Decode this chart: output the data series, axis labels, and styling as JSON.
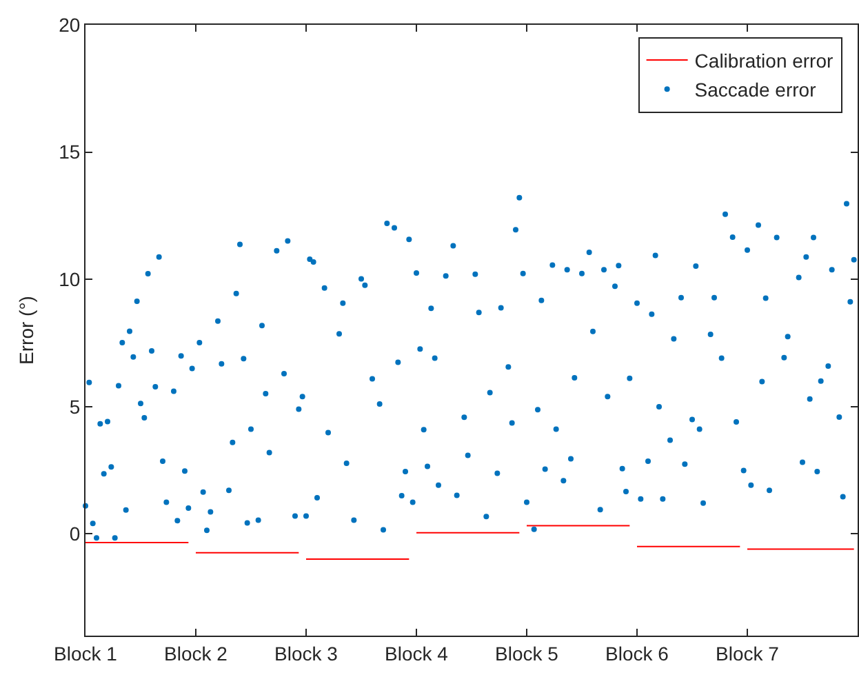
{
  "chart_data": {
    "type": "scatter",
    "ylabel": "Error (°)",
    "ylim": [
      -4,
      20
    ],
    "yticks": [
      0,
      5,
      10,
      15,
      20
    ],
    "grid": false,
    "legend": "top right",
    "categories": [
      "Block 1",
      null,
      null,
      null,
      null,
      null,
      null,
      null,
      null,
      null,
      null,
      null,
      null,
      null,
      null,
      null,
      null,
      null,
      null,
      null,
      null,
      null,
      null,
      null,
      null,
      null,
      null,
      null,
      null,
      null,
      "Block 2",
      null,
      null,
      null,
      null,
      null,
      null,
      null,
      null,
      null,
      null,
      null,
      null,
      null,
      null,
      null,
      null,
      null,
      null,
      null,
      null,
      null,
      null,
      null,
      null,
      null,
      null,
      null,
      null,
      null,
      "Block 3",
      null,
      null,
      null,
      null,
      null,
      null,
      null,
      null,
      null,
      null,
      null,
      null,
      null,
      null,
      null,
      null,
      null,
      null,
      null,
      null,
      null,
      null,
      null,
      null,
      null,
      null,
      null,
      null,
      null,
      "Block 4",
      null,
      null,
      null,
      null,
      null,
      null,
      null,
      null,
      null,
      null,
      null,
      null,
      null,
      null,
      null,
      null,
      null,
      null,
      null,
      null,
      null,
      null,
      null,
      null,
      null,
      null,
      null,
      null,
      null,
      "Block 5",
      null,
      null,
      null,
      null,
      null,
      null,
      null,
      null,
      null,
      null,
      null,
      null,
      null,
      null,
      null,
      null,
      null,
      null,
      null,
      null,
      null,
      null,
      null,
      null,
      null,
      null,
      null,
      null,
      null,
      "Block 6",
      null,
      null,
      null,
      null,
      null,
      null,
      null,
      null,
      null,
      null,
      null,
      null,
      null,
      null,
      null,
      null,
      null,
      null,
      null,
      null,
      null,
      null,
      null,
      null,
      null,
      null,
      null,
      null,
      null,
      "Block 7",
      null,
      null,
      null,
      null,
      null,
      null,
      null,
      null,
      null,
      null,
      null,
      null,
      null,
      null,
      null,
      null,
      null,
      null,
      null,
      null,
      null,
      null,
      null,
      null,
      null,
      null,
      null,
      null,
      null
    ],
    "series": [
      {
        "name": "Calibration error",
        "type": "line",
        "color": "#ff0000",
        "line_style": "solid",
        "marker": "none",
        "values": [
          -0.34,
          -0.34,
          -0.34,
          -0.34,
          -0.34,
          -0.34,
          -0.34,
          -0.34,
          -0.34,
          -0.34,
          -0.34,
          -0.34,
          -0.34,
          -0.34,
          -0.34,
          -0.34,
          -0.34,
          -0.34,
          -0.34,
          -0.34,
          -0.34,
          -0.34,
          -0.34,
          -0.34,
          -0.34,
          -0.34,
          -0.34,
          -0.34,
          -0.34,
          null,
          -0.74,
          -0.74,
          -0.74,
          -0.74,
          -0.74,
          -0.74,
          -0.74,
          -0.74,
          -0.74,
          -0.74,
          -0.74,
          -0.74,
          -0.74,
          -0.74,
          -0.74,
          -0.74,
          -0.74,
          -0.74,
          -0.74,
          -0.74,
          -0.74,
          -0.74,
          -0.74,
          -0.74,
          -0.74,
          -0.74,
          -0.74,
          -0.74,
          -0.74,
          null,
          -0.99,
          -0.99,
          -0.99,
          -0.99,
          -0.99,
          -0.99,
          -0.99,
          -0.99,
          -0.99,
          -0.99,
          -0.99,
          -0.99,
          -0.99,
          -0.99,
          -0.99,
          -0.99,
          -0.99,
          -0.99,
          -0.99,
          -0.99,
          -0.99,
          -0.99,
          -0.99,
          -0.99,
          -0.99,
          -0.99,
          -0.99,
          -0.99,
          -0.99,
          null,
          0.04,
          0.04,
          0.04,
          0.04,
          0.04,
          0.04,
          0.04,
          0.04,
          0.04,
          0.04,
          0.04,
          0.04,
          0.04,
          0.04,
          0.04,
          0.04,
          0.04,
          0.04,
          0.04,
          0.04,
          0.04,
          0.04,
          0.04,
          0.04,
          0.04,
          0.04,
          0.04,
          0.04,
          0.04,
          null,
          0.32,
          0.32,
          0.32,
          0.32,
          0.32,
          0.32,
          0.32,
          0.32,
          0.32,
          0.32,
          0.32,
          0.32,
          0.32,
          0.32,
          0.32,
          0.32,
          0.32,
          0.32,
          0.32,
          0.32,
          0.32,
          0.32,
          0.32,
          0.32,
          0.32,
          0.32,
          0.32,
          0.32,
          0.32,
          null,
          -0.5,
          -0.5,
          -0.5,
          -0.5,
          -0.5,
          -0.5,
          -0.5,
          -0.5,
          -0.5,
          -0.5,
          -0.5,
          -0.5,
          -0.5,
          -0.5,
          -0.5,
          -0.5,
          -0.5,
          -0.5,
          -0.5,
          -0.5,
          -0.5,
          -0.5,
          -0.5,
          -0.5,
          -0.5,
          -0.5,
          -0.5,
          -0.5,
          -0.5,
          null,
          -0.6,
          -0.6,
          -0.6,
          -0.6,
          -0.6,
          -0.6,
          -0.6,
          -0.6,
          -0.6,
          -0.6,
          -0.6,
          -0.6,
          -0.6,
          -0.6,
          -0.6,
          -0.6,
          -0.6,
          -0.6,
          -0.6,
          -0.6,
          -0.6,
          -0.6,
          -0.6,
          -0.6,
          -0.6,
          -0.6,
          -0.6,
          -0.6,
          -0.6,
          -0.6
        ]
      },
      {
        "name": "Saccade error",
        "color": "#0072bd",
        "marker": "circle",
        "values": [
          1.1,
          5.95,
          0.41,
          -0.16,
          4.32,
          2.36,
          4.41,
          2.63,
          -0.16,
          5.82,
          7.51,
          0.94,
          7.96,
          6.95,
          9.14,
          5.12,
          4.56,
          10.22,
          7.19,
          5.78,
          10.88,
          2.85,
          1.24,
          null,
          5.6,
          0.52,
          6.99,
          2.47,
          1.01,
          6.5,
          null,
          7.51,
          1.64,
          0.14,
          0.86,
          null,
          8.36,
          6.68,
          null,
          1.71,
          3.59,
          9.44,
          11.37,
          6.88,
          0.43,
          4.11,
          null,
          0.54,
          8.18,
          5.51,
          3.19,
          null,
          11.12,
          null,
          6.29,
          11.51,
          null,
          0.7,
          4.9,
          5.39,
          0.7,
          10.79,
          10.68,
          1.42,
          null,
          9.66,
          3.98,
          null,
          null,
          7.86,
          9.06,
          2.77,
          null,
          0.54,
          null,
          10.02,
          9.77,
          null,
          6.09,
          null,
          5.1,
          0.16,
          12.2,
          null,
          12.02,
          6.74,
          1.5,
          2.45,
          11.57,
          1.24,
          10.25,
          7.26,
          4.09,
          2.65,
          8.86,
          6.9,
          1.91,
          null,
          10.13,
          null,
          11.32,
          1.51,
          null,
          4.58,
          3.08,
          null,
          10.2,
          8.7,
          null,
          0.68,
          5.55,
          null,
          2.38,
          8.88,
          null,
          6.56,
          4.36,
          11.95,
          13.21,
          10.23,
          1.24,
          null,
          0.18,
          4.88,
          9.17,
          2.54,
          null,
          10.56,
          4.11,
          null,
          2.09,
          10.38,
          2.95,
          6.13,
          null,
          10.23,
          null,
          11.06,
          7.95,
          null,
          0.95,
          10.38,
          5.39,
          null,
          9.73,
          10.54,
          2.56,
          1.66,
          6.11,
          null,
          9.06,
          1.37,
          null,
          2.85,
          8.63,
          10.94,
          4.99,
          1.37,
          null,
          3.68,
          7.66,
          null,
          9.28,
          2.74,
          null,
          4.49,
          10.52,
          4.11,
          1.21,
          null,
          7.84,
          9.28,
          null,
          6.9,
          12.56,
          null,
          11.66,
          4.4,
          null,
          2.49,
          11.15,
          1.91,
          null,
          12.13,
          5.98,
          9.26,
          1.71,
          null,
          11.64,
          null,
          6.92,
          7.75,
          null,
          null,
          10.07,
          2.81,
          10.88,
          5.3,
          11.64,
          2.45,
          6.0,
          null,
          6.59,
          10.38,
          null,
          4.59,
          1.46,
          12.97,
          9.12,
          10.77
        ]
      }
    ]
  }
}
